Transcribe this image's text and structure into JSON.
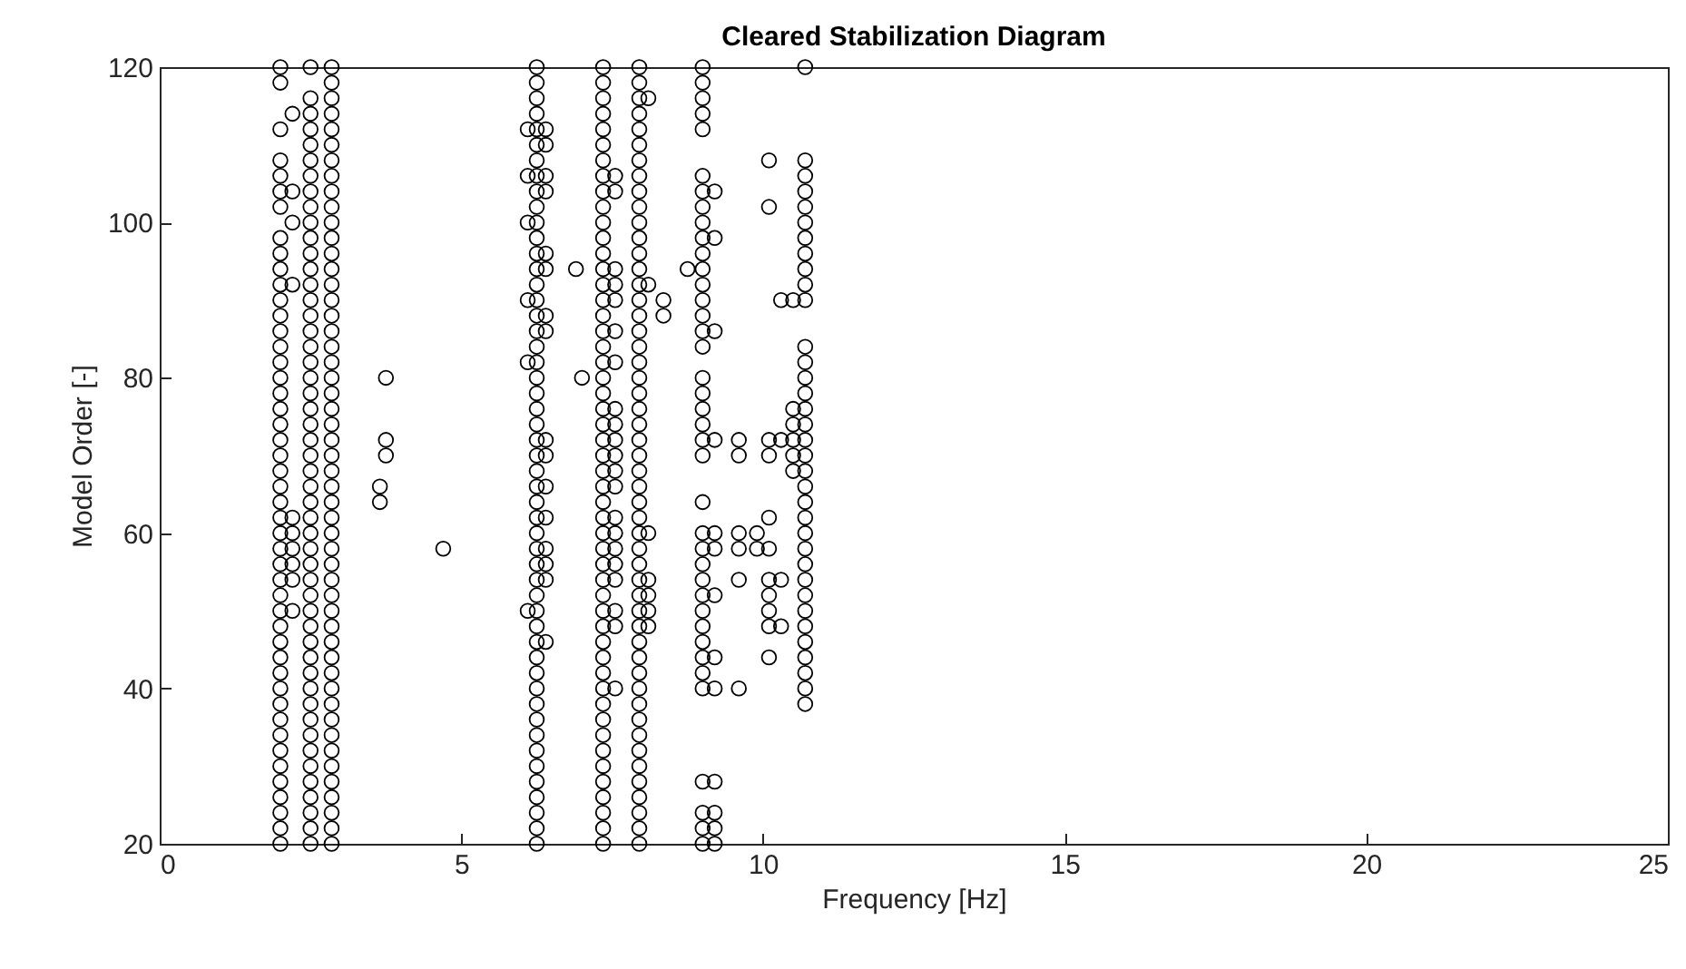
{
  "chart_data": {
    "type": "scatter",
    "title": "Cleared Stabilization Diagram",
    "xlabel": "Frequency [Hz]",
    "ylabel": "Model Order [-]",
    "xlim": [
      0,
      25
    ],
    "xticks": [
      0,
      5,
      10,
      15,
      20,
      25
    ],
    "ylim": [
      20,
      120
    ],
    "yticks": [
      20,
      40,
      60,
      80,
      100,
      120
    ],
    "grid": false,
    "legend": false,
    "marker": "circle",
    "series": [
      {
        "color": "#000000",
        "x": [
          2,
          2,
          2,
          2,
          2,
          2,
          2,
          2,
          2,
          2,
          2,
          2,
          2,
          2,
          2,
          2,
          2,
          2,
          2,
          2,
          2,
          2,
          2,
          2,
          2,
          2,
          2,
          2,
          2,
          2,
          2,
          2,
          2,
          2,
          2,
          2,
          2,
          2,
          2,
          2,
          2,
          2,
          2,
          2,
          2,
          2,
          2
        ],
        "values": [
          20,
          22,
          24,
          26,
          28,
          30,
          32,
          34,
          36,
          38,
          40,
          42,
          44,
          46,
          48,
          50,
          52,
          54,
          56,
          58,
          60,
          62,
          64,
          66,
          68,
          70,
          72,
          74,
          76,
          78,
          80,
          82,
          84,
          86,
          88,
          90,
          92,
          94,
          96,
          98,
          102,
          104,
          106,
          108,
          112,
          118,
          120
        ]
      },
      {
        "color": "#000000",
        "x": [
          2.2,
          2.2,
          2.2,
          2.2,
          2.2,
          2.2,
          2.2,
          2.2,
          2.2,
          2.2
        ],
        "values": [
          50,
          54,
          56,
          58,
          60,
          62,
          92,
          100,
          104,
          114
        ]
      },
      {
        "color": "#000000",
        "x": [
          2.5,
          2.5,
          2.5,
          2.5,
          2.5,
          2.5,
          2.5,
          2.5,
          2.5,
          2.5,
          2.5,
          2.5,
          2.5,
          2.5,
          2.5,
          2.5,
          2.5,
          2.5,
          2.5,
          2.5,
          2.5,
          2.5,
          2.5,
          2.5,
          2.5,
          2.5,
          2.5,
          2.5,
          2.5,
          2.5,
          2.5,
          2.5,
          2.5,
          2.5,
          2.5,
          2.5,
          2.5,
          2.5,
          2.5,
          2.5,
          2.5,
          2.5,
          2.5,
          2.5,
          2.5,
          2.5,
          2.5,
          2.5,
          2.5,
          2.5
        ],
        "values": [
          20,
          22,
          24,
          26,
          28,
          30,
          32,
          34,
          36,
          38,
          40,
          42,
          44,
          46,
          48,
          50,
          52,
          54,
          56,
          58,
          60,
          62,
          64,
          66,
          68,
          70,
          72,
          74,
          76,
          78,
          80,
          82,
          84,
          86,
          88,
          90,
          92,
          94,
          96,
          98,
          100,
          102,
          104,
          106,
          108,
          110,
          112,
          114,
          116,
          120
        ]
      },
      {
        "color": "#000000",
        "x": [
          2.85,
          2.85,
          2.85,
          2.85,
          2.85,
          2.85,
          2.85,
          2.85,
          2.85,
          2.85,
          2.85,
          2.85,
          2.85,
          2.85,
          2.85,
          2.85,
          2.85,
          2.85,
          2.85,
          2.85,
          2.85,
          2.85,
          2.85,
          2.85,
          2.85,
          2.85,
          2.85,
          2.85,
          2.85,
          2.85,
          2.85,
          2.85,
          2.85,
          2.85,
          2.85,
          2.85,
          2.85,
          2.85,
          2.85,
          2.85,
          2.85,
          2.85,
          2.85,
          2.85,
          2.85,
          2.85,
          2.85,
          2.85,
          2.85,
          2.85,
          2.85
        ],
        "values": [
          20,
          22,
          24,
          26,
          28,
          30,
          32,
          34,
          36,
          38,
          40,
          42,
          44,
          46,
          48,
          50,
          52,
          54,
          56,
          58,
          60,
          62,
          64,
          66,
          68,
          70,
          72,
          74,
          76,
          78,
          80,
          82,
          84,
          86,
          88,
          90,
          92,
          94,
          96,
          98,
          100,
          102,
          104,
          106,
          108,
          110,
          112,
          114,
          116,
          118,
          120
        ]
      },
      {
        "color": "#000000",
        "x": [
          3.65,
          3.65,
          3.75,
          3.75,
          3.75,
          4.7
        ],
        "values": [
          64,
          66,
          70,
          72,
          80,
          58
        ]
      },
      {
        "color": "#000000",
        "x": [
          6.25,
          6.25,
          6.25,
          6.25,
          6.25,
          6.25,
          6.25,
          6.25,
          6.25,
          6.25,
          6.25,
          6.25,
          6.25,
          6.25,
          6.25,
          6.25,
          6.25,
          6.25,
          6.25,
          6.25,
          6.25,
          6.25,
          6.25,
          6.25,
          6.25,
          6.25,
          6.25,
          6.25,
          6.25,
          6.25,
          6.25,
          6.25,
          6.25,
          6.25,
          6.25,
          6.25,
          6.25,
          6.25,
          6.25,
          6.25,
          6.25,
          6.25,
          6.25,
          6.25,
          6.25,
          6.25,
          6.25,
          6.25,
          6.25,
          6.25,
          6.25
        ],
        "values": [
          20,
          22,
          24,
          26,
          28,
          30,
          32,
          34,
          36,
          38,
          40,
          42,
          44,
          46,
          48,
          50,
          52,
          54,
          56,
          58,
          60,
          62,
          64,
          66,
          68,
          70,
          72,
          74,
          76,
          78,
          80,
          82,
          84,
          86,
          88,
          90,
          92,
          94,
          96,
          98,
          100,
          102,
          104,
          106,
          108,
          110,
          112,
          114,
          116,
          118,
          120
        ]
      },
      {
        "color": "#000000",
        "x": [
          6.1,
          6.1,
          6.1,
          6.1,
          6.1,
          6.1
        ],
        "values": [
          50,
          82,
          90,
          100,
          106,
          112
        ]
      },
      {
        "color": "#000000",
        "x": [
          6.4,
          6.4,
          6.4,
          6.4,
          6.4,
          6.4,
          6.4,
          6.4,
          6.4,
          6.4,
          6.4,
          6.4,
          6.4,
          6.4,
          6.4,
          6.4,
          6.9,
          7
        ],
        "values": [
          46,
          54,
          56,
          58,
          62,
          66,
          70,
          72,
          86,
          88,
          94,
          96,
          104,
          106,
          110,
          112,
          94,
          80
        ]
      },
      {
        "color": "#000000",
        "x": [
          7.35,
          7.35,
          7.35,
          7.35,
          7.35,
          7.35,
          7.35,
          7.35,
          7.35,
          7.35,
          7.35,
          7.35,
          7.35,
          7.35,
          7.35,
          7.35,
          7.35,
          7.35,
          7.35,
          7.35,
          7.35,
          7.35,
          7.35,
          7.35,
          7.35,
          7.35,
          7.35,
          7.35,
          7.35,
          7.35,
          7.35,
          7.35,
          7.35,
          7.35,
          7.35,
          7.35,
          7.35,
          7.35,
          7.35,
          7.35,
          7.35,
          7.35,
          7.35,
          7.35,
          7.35,
          7.35,
          7.35,
          7.35,
          7.35,
          7.35,
          7.35
        ],
        "values": [
          20,
          22,
          24,
          26,
          28,
          30,
          32,
          34,
          36,
          38,
          40,
          42,
          44,
          46,
          48,
          50,
          52,
          54,
          56,
          58,
          60,
          62,
          64,
          66,
          68,
          70,
          72,
          74,
          76,
          78,
          80,
          82,
          84,
          86,
          88,
          90,
          92,
          94,
          96,
          98,
          100,
          102,
          104,
          106,
          108,
          110,
          112,
          114,
          116,
          118,
          120
        ]
      },
      {
        "color": "#000000",
        "x": [
          7.55,
          7.55,
          7.55,
          7.55,
          7.55,
          7.55,
          7.55,
          7.55,
          7.55,
          7.55,
          7.55,
          7.55,
          7.55,
          7.55,
          7.55,
          7.55,
          7.55,
          7.55,
          7.55,
          7.55,
          7.55
        ],
        "values": [
          40,
          48,
          50,
          54,
          56,
          58,
          60,
          62,
          66,
          68,
          70,
          72,
          74,
          76,
          82,
          86,
          90,
          92,
          94,
          104,
          106
        ]
      },
      {
        "color": "#000000",
        "x": [
          7.95,
          7.95,
          7.95,
          7.95,
          7.95,
          7.95,
          7.95,
          7.95,
          7.95,
          7.95,
          7.95,
          7.95,
          7.95,
          7.95,
          7.95,
          7.95,
          7.95,
          7.95,
          7.95,
          7.95,
          7.95,
          7.95,
          7.95,
          7.95,
          7.95,
          7.95,
          7.95,
          7.95,
          7.95,
          7.95,
          7.95,
          7.95,
          7.95,
          7.95,
          7.95,
          7.95,
          7.95,
          7.95,
          7.95,
          7.95,
          7.95,
          7.95,
          7.95,
          7.95,
          7.95,
          7.95,
          7.95,
          7.95,
          7.95,
          7.95,
          7.95
        ],
        "values": [
          20,
          22,
          24,
          26,
          28,
          30,
          32,
          34,
          36,
          38,
          40,
          42,
          44,
          46,
          48,
          50,
          52,
          54,
          56,
          58,
          60,
          62,
          64,
          66,
          68,
          70,
          72,
          74,
          76,
          78,
          80,
          82,
          84,
          86,
          88,
          90,
          92,
          94,
          96,
          98,
          100,
          102,
          104,
          106,
          108,
          110,
          112,
          114,
          116,
          118,
          120
        ]
      },
      {
        "color": "#000000",
        "x": [
          8.1,
          8.1,
          8.1,
          8.1,
          8.1,
          8.1,
          8.1,
          8.35,
          8.35,
          8.75
        ],
        "values": [
          48,
          50,
          52,
          54,
          60,
          92,
          116,
          88,
          90,
          94
        ]
      },
      {
        "color": "#000000",
        "x": [
          9,
          9,
          9,
          9,
          9,
          9,
          9,
          9,
          9,
          9,
          9,
          9,
          9,
          9,
          9,
          9,
          9,
          9,
          9,
          9,
          9,
          9,
          9,
          9,
          9,
          9,
          9,
          9,
          9,
          9,
          9,
          9,
          9,
          9,
          9,
          9,
          9,
          9,
          9
        ],
        "values": [
          20,
          22,
          24,
          28,
          40,
          42,
          44,
          46,
          48,
          50,
          52,
          54,
          56,
          58,
          60,
          64,
          70,
          72,
          74,
          76,
          78,
          80,
          84,
          86,
          88,
          90,
          92,
          94,
          96,
          98,
          100,
          102,
          104,
          106,
          112,
          114,
          116,
          118,
          120
        ]
      },
      {
        "color": "#000000",
        "x": [
          9.2,
          9.2,
          9.2,
          9.2,
          9.2,
          9.2,
          9.2,
          9.2,
          9.2,
          9.2,
          9.2,
          9.2,
          9.2
        ],
        "values": [
          20,
          22,
          24,
          28,
          40,
          44,
          52,
          58,
          60,
          72,
          86,
          98,
          104
        ]
      },
      {
        "color": "#000000",
        "x": [
          9.6,
          9.6,
          9.6,
          9.6,
          9.6,
          9.6,
          9.9,
          9.9
        ],
        "values": [
          40,
          54,
          58,
          60,
          70,
          72,
          58,
          60
        ]
      },
      {
        "color": "#000000",
        "x": [
          10.1,
          10.1,
          10.1,
          10.1,
          10.1,
          10.1,
          10.1,
          10.1,
          10.1,
          10.1,
          10.1,
          10.3,
          10.3,
          10.3,
          10.3,
          10.5,
          10.5,
          10.5,
          10.5,
          10.5,
          10.5
        ],
        "values": [
          44,
          48,
          50,
          52,
          54,
          58,
          62,
          70,
          72,
          102,
          108,
          48,
          54,
          72,
          90,
          68,
          70,
          72,
          74,
          76,
          90
        ]
      },
      {
        "color": "#000000",
        "x": [
          10.7,
          10.7,
          10.7,
          10.7,
          10.7,
          10.7,
          10.7,
          10.7,
          10.7,
          10.7,
          10.7,
          10.7,
          10.7,
          10.7,
          10.7,
          10.7,
          10.7,
          10.7,
          10.7,
          10.7,
          10.7,
          10.7,
          10.7,
          10.7,
          10.7,
          10.7,
          10.7,
          10.7,
          10.7,
          10.7,
          10.7,
          10.7,
          10.7,
          10.7,
          10.7
        ],
        "values": [
          38,
          40,
          42,
          44,
          46,
          48,
          50,
          52,
          54,
          56,
          58,
          60,
          62,
          64,
          66,
          68,
          70,
          72,
          74,
          76,
          78,
          80,
          82,
          84,
          90,
          92,
          94,
          96,
          98,
          100,
          102,
          104,
          106,
          108,
          120
        ]
      }
    ]
  }
}
